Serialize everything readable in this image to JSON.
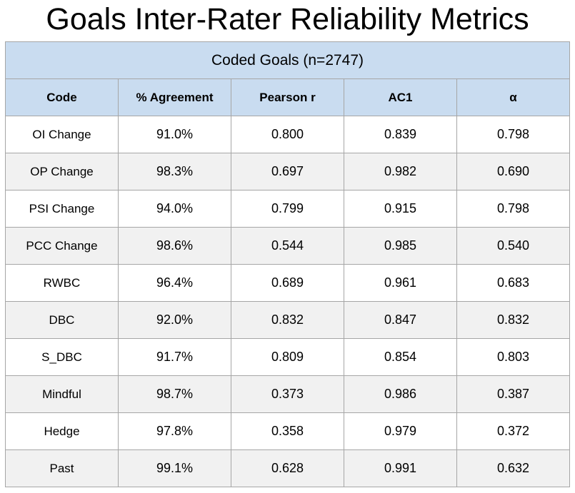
{
  "title": "Goals Inter-Rater Reliability Metrics",
  "table": {
    "caption": "Coded Goals (n=2747)",
    "headers": [
      "Code",
      "% Agreement",
      "Pearson r",
      "AC1",
      "α"
    ],
    "rows": [
      [
        "OI Change",
        "91.0%",
        "0.800",
        "0.839",
        "0.798"
      ],
      [
        "OP Change",
        "98.3%",
        "0.697",
        "0.982",
        "0.690"
      ],
      [
        "PSI Change",
        "94.0%",
        "0.799",
        "0.915",
        "0.798"
      ],
      [
        "PCC Change",
        "98.6%",
        "0.544",
        "0.985",
        "0.540"
      ],
      [
        "RWBC",
        "96.4%",
        "0.689",
        "0.961",
        "0.683"
      ],
      [
        "DBC",
        "92.0%",
        "0.832",
        "0.847",
        "0.832"
      ],
      [
        "S_DBC",
        "91.7%",
        "0.809",
        "0.854",
        "0.803"
      ],
      [
        "Mindful",
        "98.7%",
        "0.373",
        "0.986",
        "0.387"
      ],
      [
        "Hedge",
        "97.8%",
        "0.358",
        "0.979",
        "0.372"
      ],
      [
        "Past",
        "99.1%",
        "0.628",
        "0.991",
        "0.632"
      ]
    ]
  },
  "colors": {
    "header_background": "#c9dcf0",
    "stripe_background": "#f1f1f1",
    "border": "#a6a6a6"
  }
}
